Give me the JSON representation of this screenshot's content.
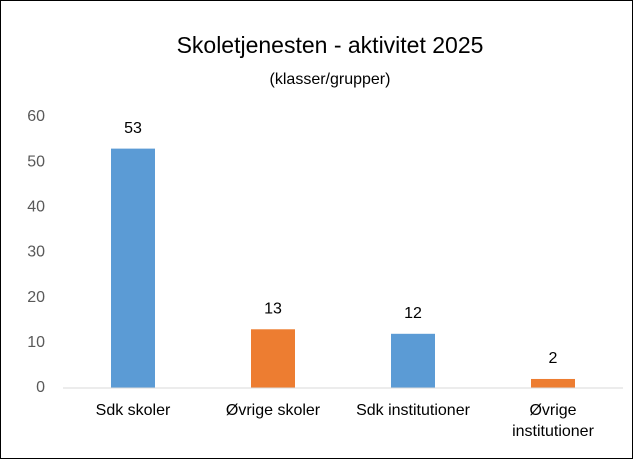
{
  "chart_data": {
    "type": "bar",
    "title": "Skoletjenesten - aktivitet 2025",
    "subtitle": "(klasser/grupper)",
    "categories": [
      "Sdk skoler",
      "Øvrige skoler",
      "Sdk institutioner",
      "Øvrige institutioner"
    ],
    "values": [
      53,
      13,
      12,
      2
    ],
    "colors": [
      "#5b9bd5",
      "#ed7d31",
      "#5b9bd5",
      "#ed7d31"
    ],
    "ylim": [
      0,
      60
    ],
    "yticks": [
      0,
      10,
      20,
      30,
      40,
      50,
      60
    ],
    "grid": false
  }
}
